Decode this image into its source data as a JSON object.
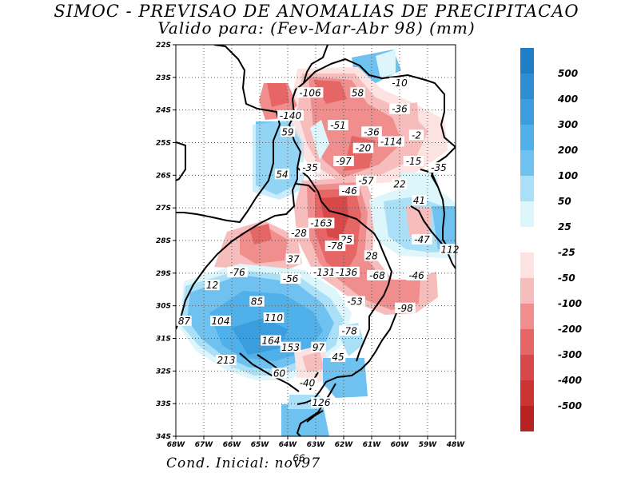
{
  "title": "SIMOC - PREVISAO DE ANOMALIAS DE PRECIPITACAO",
  "subtitle": "Valido para: (Fev-Mar-Abr 98) (mm)",
  "footer": "Cond. Inicial: nov97",
  "lat_labels": [
    "22S",
    "23S",
    "24S",
    "25S",
    "26S",
    "27S",
    "28S",
    "29S",
    "30S",
    "31S",
    "32S",
    "33S",
    "34S"
  ],
  "lon_labels": [
    "68W",
    "67W",
    "66W",
    "65W",
    "64W",
    "63W",
    "62W",
    "61W",
    "60W",
    "59W",
    "48W"
  ],
  "legend_positive": [
    "500",
    "400",
    "300",
    "200",
    "100",
    "50",
    "25"
  ],
  "legend_negative": [
    "-25",
    "-50",
    "-100",
    "-200",
    "-300",
    "-400",
    "-500"
  ],
  "colors": {
    "p500": "#1e7fc7",
    "p400": "#2c8ed3",
    "p300": "#3a9ede",
    "p200": "#4fb0ea",
    "p100": "#6fc2f0",
    "p50": "#a9dff7",
    "p25": "#dcf6fb",
    "n25": "#fde2e2",
    "n50": "#f7bcbc",
    "n100": "#f08e8e",
    "n200": "#e66565",
    "n300": "#d94848",
    "n400": "#cc3333",
    "n500": "#b82222"
  },
  "anomaly_labels": [
    {
      "text": "-106",
      "lon": -63.2,
      "lat": -23.5
    },
    {
      "text": "58",
      "lon": -61.5,
      "lat": -23.5
    },
    {
      "text": "-10",
      "lon": -60.0,
      "lat": -23.2
    },
    {
      "text": "-36",
      "lon": -60.0,
      "lat": -24.0
    },
    {
      "text": "-140",
      "lon": -63.9,
      "lat": -24.2
    },
    {
      "text": "59",
      "lon": -64.0,
      "lat": -24.7
    },
    {
      "text": "-51",
      "lon": -62.2,
      "lat": -24.5
    },
    {
      "text": "-36",
      "lon": -61.0,
      "lat": -24.7
    },
    {
      "text": "-114",
      "lon": -60.3,
      "lat": -25.0
    },
    {
      "text": "-2",
      "lon": -59.4,
      "lat": -24.8
    },
    {
      "text": "-20",
      "lon": -61.3,
      "lat": -25.2
    },
    {
      "text": "-35",
      "lon": -63.2,
      "lat": -25.8
    },
    {
      "text": "-97",
      "lon": -62.0,
      "lat": -25.6
    },
    {
      "text": "-15",
      "lon": -59.5,
      "lat": -25.6
    },
    {
      "text": "-35",
      "lon": -58.6,
      "lat": -25.8
    },
    {
      "text": "54",
      "lon": -64.2,
      "lat": -26.0
    },
    {
      "text": "-57",
      "lon": -61.2,
      "lat": -26.2
    },
    {
      "text": "-46",
      "lon": -61.8,
      "lat": -26.5
    },
    {
      "text": "22",
      "lon": -60.0,
      "lat": -26.3
    },
    {
      "text": "41",
      "lon": -59.3,
      "lat": -26.8
    },
    {
      "text": "-163",
      "lon": -62.8,
      "lat": -27.5
    },
    {
      "text": "-28",
      "lon": -63.6,
      "lat": -27.8
    },
    {
      "text": "25",
      "lon": -61.9,
      "lat": -28.0
    },
    {
      "text": "-78",
      "lon": -62.3,
      "lat": -28.2
    },
    {
      "text": "-47",
      "lon": -59.2,
      "lat": -28.0
    },
    {
      "text": "112",
      "lon": -58.2,
      "lat": -28.3
    },
    {
      "text": "28",
      "lon": -61.0,
      "lat": -28.5
    },
    {
      "text": "37",
      "lon": -63.8,
      "lat": -28.6
    },
    {
      "text": "-76",
      "lon": -65.8,
      "lat": -29.0
    },
    {
      "text": "-56",
      "lon": -63.9,
      "lat": -29.2
    },
    {
      "text": "-131",
      "lon": -62.7,
      "lat": -29.0
    },
    {
      "text": "-136",
      "lon": -61.9,
      "lat": -29.0
    },
    {
      "text": "-68",
      "lon": -60.8,
      "lat": -29.1
    },
    {
      "text": "-46",
      "lon": -59.4,
      "lat": -29.1
    },
    {
      "text": "12",
      "lon": -66.7,
      "lat": -29.4
    },
    {
      "text": "85",
      "lon": -65.1,
      "lat": -29.9
    },
    {
      "text": "-53",
      "lon": -61.6,
      "lat": -29.9
    },
    {
      "text": "-98",
      "lon": -59.8,
      "lat": -30.1
    },
    {
      "text": "87",
      "lon": -67.7,
      "lat": -30.5
    },
    {
      "text": "104",
      "lon": -66.4,
      "lat": -30.5
    },
    {
      "text": "110",
      "lon": -64.5,
      "lat": -30.4
    },
    {
      "text": "-78",
      "lon": -61.8,
      "lat": -30.8
    },
    {
      "text": "164",
      "lon": -64.6,
      "lat": -31.1
    },
    {
      "text": "153",
      "lon": -63.9,
      "lat": -31.3
    },
    {
      "text": "97",
      "lon": -62.9,
      "lat": -31.3
    },
    {
      "text": "213",
      "lon": -66.2,
      "lat": -31.7
    },
    {
      "text": "45",
      "lon": -62.2,
      "lat": -31.6
    },
    {
      "text": "60",
      "lon": -64.3,
      "lat": -32.1
    },
    {
      "text": "-40",
      "lon": -63.3,
      "lat": -32.4
    },
    {
      "text": "126",
      "lon": -62.8,
      "lat": -33.0
    },
    {
      "text": "66",
      "lon": -63.6,
      "lat": -34.7
    }
  ]
}
